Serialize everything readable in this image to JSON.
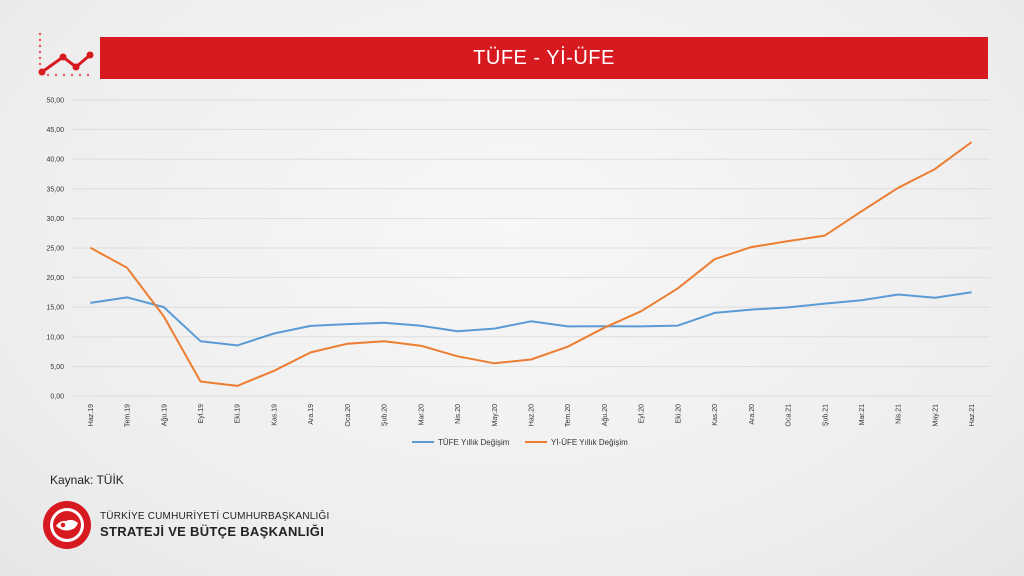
{
  "header": {
    "title": "TÜFE - Yİ-ÜFE"
  },
  "footer": {
    "source_label": "Kaynak:  TÜİK",
    "org_line1": "TÜRKİYE CUMHURİYETİ CUMHURBAŞKANLIĞI",
    "org_line2": "STRATEJİ VE BÜTÇE BAŞKANLIĞI"
  },
  "colors": {
    "brand_red": "#d71920",
    "tufe": "#5b9bd5",
    "yiufe": "#ed7d31"
  },
  "chart_data": {
    "type": "line",
    "title": "TÜFE - Yİ-ÜFE",
    "categories": [
      "Haz.19",
      "Tem.19",
      "Ağu.19",
      "Eyl.19",
      "Eki.19",
      "Kas.19",
      "Ara.19",
      "Oca.20",
      "Şub.20",
      "Mar.20",
      "Nis.20",
      "May.20",
      "Haz.20",
      "Tem.20",
      "Ağu.20",
      "Eyl.20",
      "Eki.20",
      "Kas.20",
      "Ara.20",
      "Oca.21",
      "Şub.21",
      "Mar.21",
      "Nis.21",
      "May.21",
      "Haz.21"
    ],
    "series": [
      {
        "name": "TÜFE Yıllık Değişim",
        "color": "#5b9bd5",
        "values": [
          15.72,
          16.65,
          15.01,
          9.26,
          8.55,
          10.56,
          11.84,
          12.15,
          12.37,
          11.86,
          10.94,
          11.39,
          12.62,
          11.76,
          11.77,
          11.75,
          11.89,
          14.03,
          14.6,
          14.97,
          15.61,
          16.19,
          17.14,
          16.59,
          17.53
        ]
      },
      {
        "name": "Yİ-ÜFE Yıllık Değişim",
        "color": "#ed7d31",
        "values": [
          25.04,
          21.66,
          13.45,
          2.45,
          1.7,
          4.26,
          7.36,
          8.84,
          9.26,
          8.5,
          6.71,
          5.53,
          6.17,
          8.33,
          11.53,
          14.33,
          18.2,
          23.11,
          25.15,
          26.16,
          27.09,
          31.2,
          35.17,
          38.33,
          42.89
        ]
      }
    ],
    "y_ticks": [
      "0,00",
      "5,00",
      "10,00",
      "15,00",
      "20,00",
      "25,00",
      "30,00",
      "35,00",
      "40,00",
      "45,00",
      "50,00"
    ],
    "ylim": [
      0,
      50
    ],
    "grid": true,
    "legend_position": "bottom"
  }
}
